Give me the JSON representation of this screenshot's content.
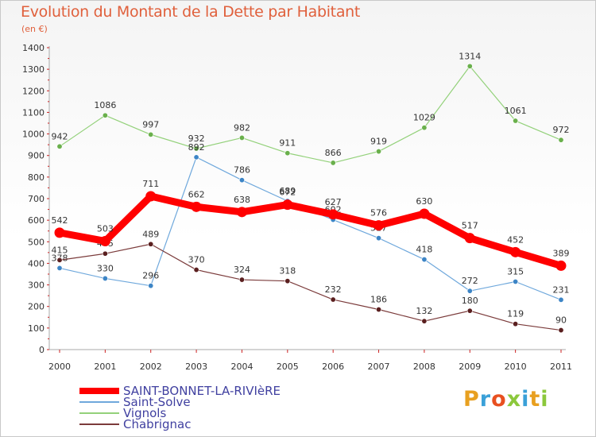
{
  "title": "Evolution du Montant de la Dette par Habitant",
  "subtitle": "(en €)",
  "logo": {
    "text": "Proxiti",
    "colors": [
      "#e8a020",
      "#3aa0d8",
      "#e85020",
      "#8cc83c",
      "#3aa0d8",
      "#e8a020",
      "#8cc83c"
    ]
  },
  "chart_data": {
    "type": "line",
    "title": "Evolution du Montant de la Dette par Habitant",
    "ylabel": "(en €)",
    "xlabel": "",
    "categories": [
      "2000",
      "2001",
      "2002",
      "2003",
      "2004",
      "2005",
      "2006",
      "2007",
      "2008",
      "2009",
      "2010",
      "2011"
    ],
    "ylim": [
      0,
      1400
    ],
    "yticks": [
      0,
      100,
      200,
      300,
      400,
      500,
      600,
      700,
      800,
      900,
      1000,
      1100,
      1200,
      1300,
      1400
    ],
    "grid": false,
    "legend_position": "bottom-left",
    "series": [
      {
        "name": "SAINT-BONNET-LA-RIVIèRE",
        "color": "#ff0000",
        "marker_color": "#ff0000",
        "thick": true,
        "values": [
          542,
          503,
          711,
          662,
          638,
          672,
          627,
          576,
          630,
          517,
          452,
          389
        ]
      },
      {
        "name": "Saint-Solve",
        "color": "#6fa8dc",
        "marker_color": "#3d85c6",
        "thick": false,
        "values": [
          378,
          330,
          296,
          892,
          786,
          689,
          602,
          517,
          418,
          272,
          315,
          231
        ]
      },
      {
        "name": "Vignols",
        "color": "#93d17a",
        "marker_color": "#6ab04c",
        "thick": false,
        "values": [
          942,
          1086,
          997,
          932,
          982,
          911,
          866,
          919,
          1029,
          1314,
          1061,
          972
        ]
      },
      {
        "name": "Chabrignac",
        "color": "#7b3b3b",
        "marker_color": "#5a1f1f",
        "thick": false,
        "values": [
          415,
          445,
          489,
          370,
          324,
          318,
          232,
          186,
          132,
          180,
          119,
          90
        ]
      }
    ]
  }
}
